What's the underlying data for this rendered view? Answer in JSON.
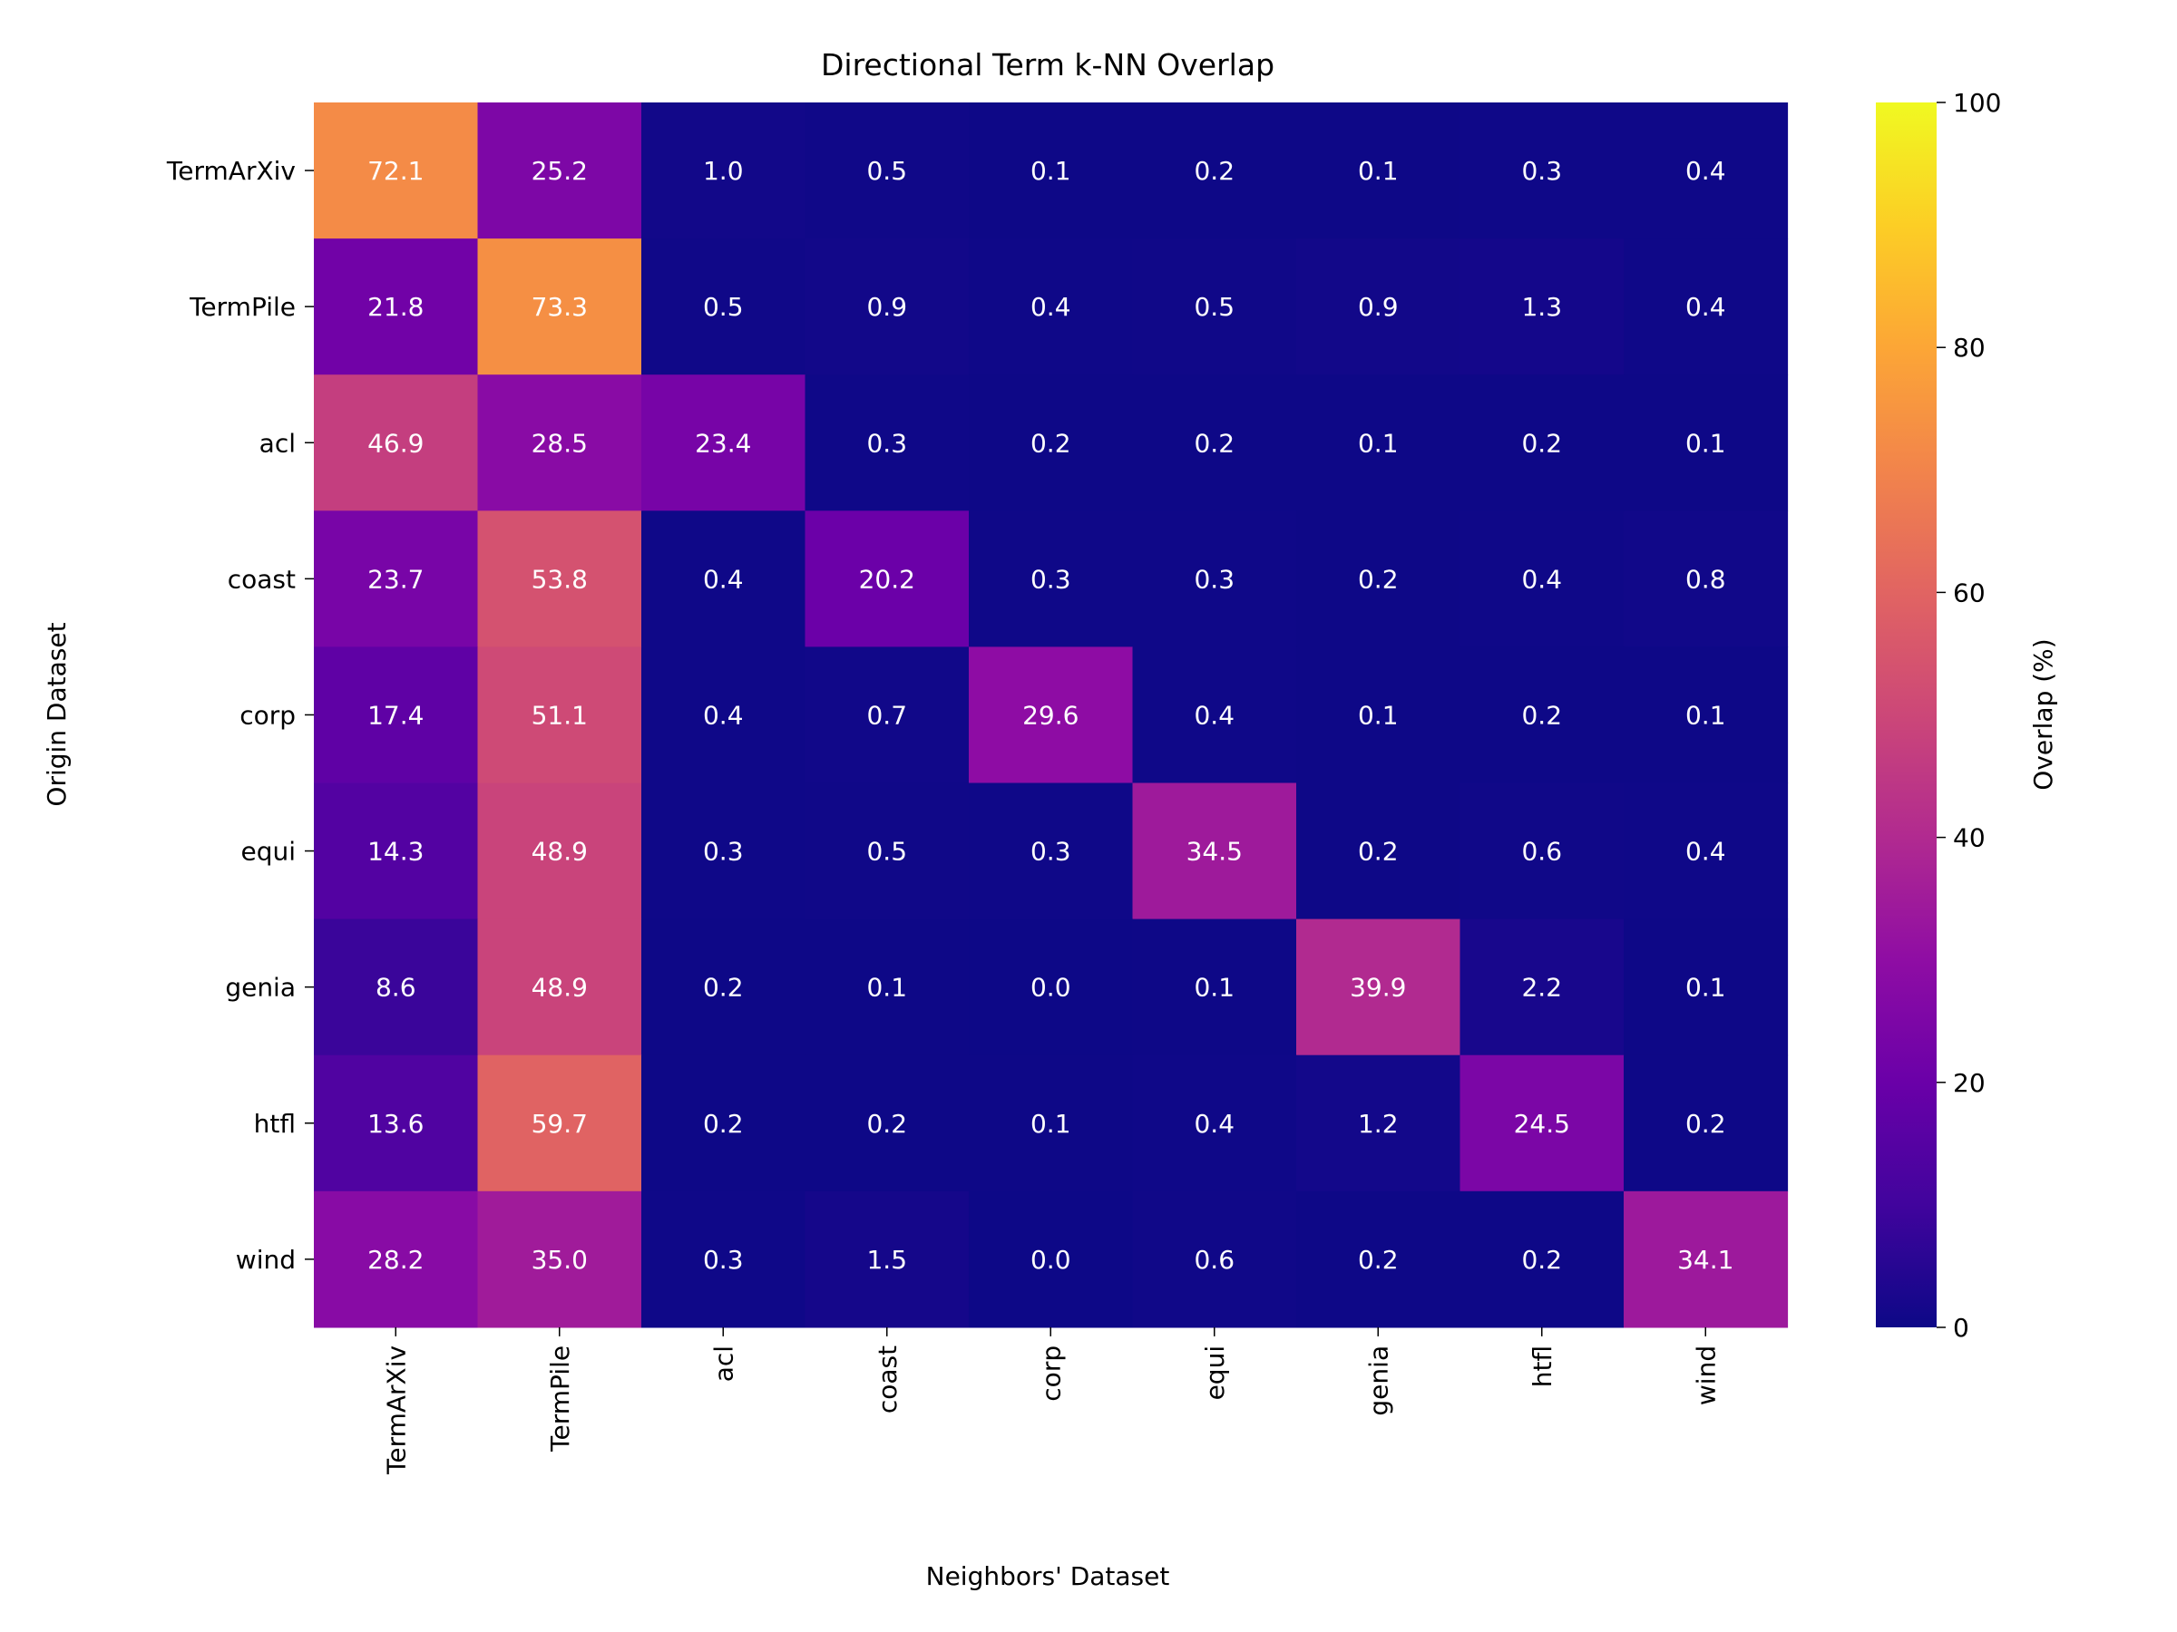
{
  "chart_data": {
    "type": "heatmap",
    "title": "Directional Term k-NN Overlap",
    "xlabel": "Neighbors' Dataset",
    "ylabel": "Origin Dataset",
    "x_categories": [
      "TermArXiv",
      "TermPile",
      "acl",
      "coast",
      "corp",
      "equi",
      "genia",
      "htfl",
      "wind"
    ],
    "y_categories": [
      "TermArXiv",
      "TermPile",
      "acl",
      "coast",
      "corp",
      "equi",
      "genia",
      "htfl",
      "wind"
    ],
    "values": [
      [
        72.1,
        25.2,
        1.0,
        0.5,
        0.1,
        0.2,
        0.1,
        0.3,
        0.4
      ],
      [
        21.8,
        73.3,
        0.5,
        0.9,
        0.4,
        0.5,
        0.9,
        1.3,
        0.4
      ],
      [
        46.9,
        28.5,
        23.4,
        0.3,
        0.2,
        0.2,
        0.1,
        0.2,
        0.1
      ],
      [
        23.7,
        53.8,
        0.4,
        20.2,
        0.3,
        0.3,
        0.2,
        0.4,
        0.8
      ],
      [
        17.4,
        51.1,
        0.4,
        0.7,
        29.6,
        0.4,
        0.1,
        0.2,
        0.1
      ],
      [
        14.3,
        48.9,
        0.3,
        0.5,
        0.3,
        34.5,
        0.2,
        0.6,
        0.4
      ],
      [
        8.6,
        48.9,
        0.2,
        0.1,
        0.0,
        0.1,
        39.9,
        2.2,
        0.1
      ],
      [
        13.6,
        59.7,
        0.2,
        0.2,
        0.1,
        0.4,
        1.2,
        24.5,
        0.2
      ],
      [
        28.2,
        35.0,
        0.3,
        1.5,
        0.0,
        0.6,
        0.2,
        0.2,
        34.1
      ]
    ],
    "colorbar": {
      "label": "Overlap (%)",
      "range": [
        0,
        100
      ],
      "ticks": [
        0,
        20,
        40,
        60,
        80,
        100
      ],
      "colormap": "plasma"
    }
  }
}
